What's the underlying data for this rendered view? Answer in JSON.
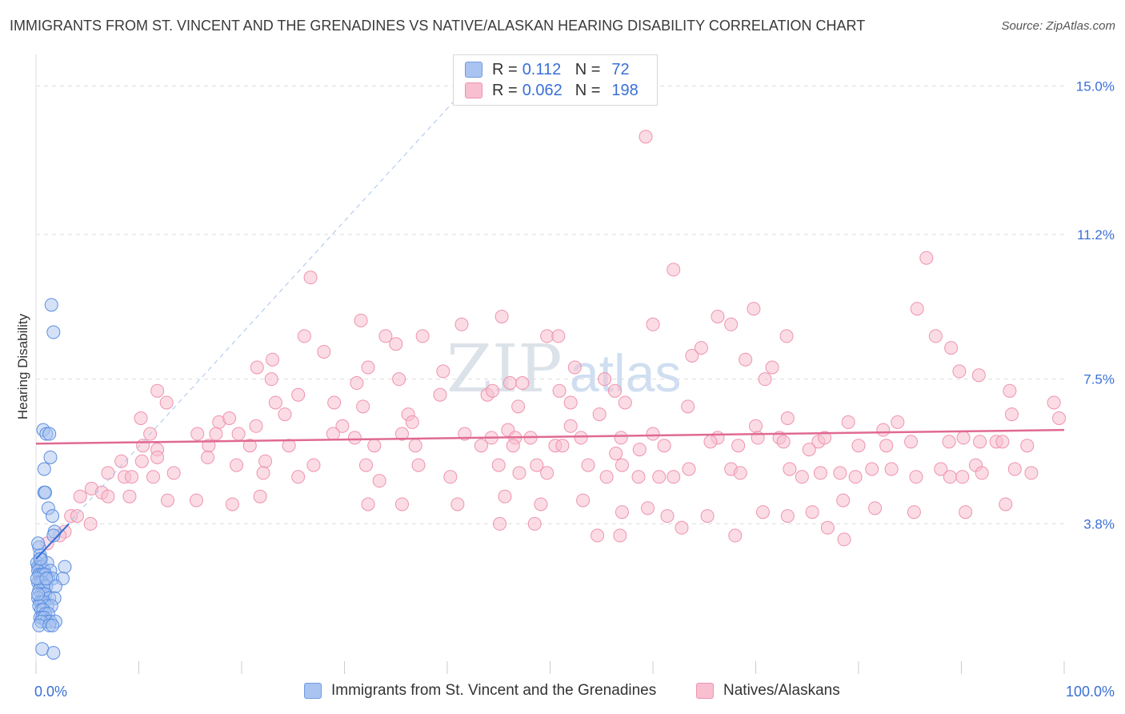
{
  "title": "IMMIGRANTS FROM ST. VINCENT AND THE GRENADINES VS NATIVE/ALASKAN HEARING DISABILITY CORRELATION CHART",
  "source": "Source: ZipAtlas.com",
  "watermark": {
    "zip": "ZIP",
    "atlas": "atlas"
  },
  "legend_top": {
    "rows": [
      {
        "r_label": "R =",
        "r_value": "0.112",
        "n_label": "N =",
        "n_value": "72",
        "color": "#a9c4f0",
        "border": "#6f9be0"
      },
      {
        "r_label": "R =",
        "r_value": "0.062",
        "n_label": "N =",
        "n_value": "198",
        "color": "#f7bfd0",
        "border": "#ee93ae"
      }
    ]
  },
  "legend_bottom": {
    "items": [
      {
        "label": "Immigrants from St. Vincent and the Grenadines",
        "color": "#a9c4f0",
        "border": "#6f9be0"
      },
      {
        "label": "Natives/Alaskans",
        "color": "#f7bfd0",
        "border": "#ee93ae"
      }
    ]
  },
  "chart_data": {
    "type": "scatter",
    "title": "IMMIGRANTS FROM ST. VINCENT AND THE GRENADINES VS NATIVE/ALASKAN HEARING DISABILITY CORRELATION CHART",
    "xlabel": "",
    "ylabel": "Hearing Disability",
    "xlim": [
      0,
      100
    ],
    "ylim": [
      0,
      15.6
    ],
    "x_tick_labels": [
      "0.0%",
      "100.0%"
    ],
    "y_ticks": [
      3.8,
      7.5,
      11.2,
      15.0
    ],
    "y_tick_labels": [
      "3.8%",
      "7.5%",
      "11.2%",
      "15.0%"
    ],
    "grid": true,
    "colors": {
      "blue_fill": "#a9c4f0",
      "blue_stroke": "#5b8ee0",
      "blue_line": "#2f6fd8",
      "pink_fill": "#f7bfd0",
      "pink_stroke": "#ee93ae",
      "pink_line": "#e06a93",
      "grid": "#dcdcdc",
      "tick_label": "#3a6fd6"
    },
    "series": [
      {
        "name": "Immigrants from St. Vincent and the Grenadines",
        "r": 0.112,
        "n": 72,
        "trend": {
          "x0": 0,
          "y0": 2.9,
          "x1": 3.2,
          "y1": 3.8
        },
        "trend_extended": {
          "x0": 0,
          "y0": 2.9,
          "x1": 42,
          "y1": 15.0
        },
        "points": [
          [
            1.5,
            9.4
          ],
          [
            1.7,
            8.7
          ],
          [
            0.7,
            6.2
          ],
          [
            1.0,
            6.1
          ],
          [
            1.3,
            6.1
          ],
          [
            1.4,
            5.5
          ],
          [
            0.8,
            5.2
          ],
          [
            0.8,
            4.6
          ],
          [
            0.9,
            4.6
          ],
          [
            1.2,
            4.2
          ],
          [
            1.6,
            4.0
          ],
          [
            1.8,
            3.6
          ],
          [
            1.7,
            3.5
          ],
          [
            0.3,
            3.2
          ],
          [
            0.4,
            3.0
          ],
          [
            0.5,
            2.9
          ],
          [
            0.1,
            2.8
          ],
          [
            0.2,
            2.7
          ],
          [
            0.4,
            2.7
          ],
          [
            0.6,
            2.7
          ],
          [
            0.8,
            2.6
          ],
          [
            1.1,
            2.8
          ],
          [
            1.4,
            2.6
          ],
          [
            2.8,
            2.7
          ],
          [
            0.2,
            2.6
          ],
          [
            0.3,
            2.5
          ],
          [
            0.5,
            2.5
          ],
          [
            0.7,
            2.5
          ],
          [
            0.9,
            2.5
          ],
          [
            1.2,
            2.4
          ],
          [
            1.6,
            2.4
          ],
          [
            2.6,
            2.4
          ],
          [
            0.2,
            2.3
          ],
          [
            0.4,
            2.3
          ],
          [
            0.6,
            2.3
          ],
          [
            0.8,
            2.2
          ],
          [
            1.0,
            2.2
          ],
          [
            1.9,
            2.2
          ],
          [
            0.3,
            2.1
          ],
          [
            0.5,
            2.0
          ],
          [
            0.7,
            2.0
          ],
          [
            0.9,
            2.0
          ],
          [
            1.3,
            1.9
          ],
          [
            1.8,
            1.9
          ],
          [
            0.2,
            1.9
          ],
          [
            0.4,
            1.8
          ],
          [
            0.6,
            1.8
          ],
          [
            0.8,
            1.8
          ],
          [
            1.1,
            1.7
          ],
          [
            1.5,
            1.7
          ],
          [
            0.3,
            1.7
          ],
          [
            0.5,
            1.6
          ],
          [
            0.7,
            1.6
          ],
          [
            0.9,
            1.5
          ],
          [
            1.2,
            1.5
          ],
          [
            0.4,
            1.4
          ],
          [
            0.6,
            1.4
          ],
          [
            0.8,
            1.4
          ],
          [
            1.0,
            1.3
          ],
          [
            1.4,
            1.3
          ],
          [
            1.9,
            1.3
          ],
          [
            0.5,
            1.3
          ],
          [
            0.3,
            1.2
          ],
          [
            1.3,
            1.2
          ],
          [
            1.6,
            1.2
          ],
          [
            0.6,
            0.6
          ],
          [
            1.7,
            0.5
          ],
          [
            0.2,
            2.0
          ],
          [
            0.1,
            2.4
          ],
          [
            0.2,
            3.3
          ],
          [
            0.4,
            2.9
          ],
          [
            1.0,
            2.4
          ]
        ]
      },
      {
        "name": "Natives/Alaskans",
        "r": 0.062,
        "n": 198,
        "trend": {
          "x0": 0,
          "y0": 5.85,
          "x1": 100,
          "y1": 6.2
        },
        "points": [
          [
            59.3,
            13.7
          ],
          [
            26.7,
            10.1
          ],
          [
            62.0,
            10.3
          ],
          [
            86.6,
            10.6
          ],
          [
            31.6,
            9.0
          ],
          [
            41.4,
            8.9
          ],
          [
            45.3,
            9.1
          ],
          [
            60.0,
            8.9
          ],
          [
            66.3,
            9.1
          ],
          [
            67.6,
            8.9
          ],
          [
            69.8,
            9.3
          ],
          [
            85.7,
            9.3
          ],
          [
            26.1,
            8.6
          ],
          [
            34.0,
            8.6
          ],
          [
            35.0,
            8.4
          ],
          [
            37.6,
            8.6
          ],
          [
            49.7,
            8.6
          ],
          [
            50.8,
            8.6
          ],
          [
            73.0,
            8.6
          ],
          [
            87.5,
            8.6
          ],
          [
            28.0,
            8.2
          ],
          [
            23.0,
            8.0
          ],
          [
            63.8,
            8.1
          ],
          [
            64.7,
            8.3
          ],
          [
            69.0,
            8.0
          ],
          [
            89.0,
            8.3
          ],
          [
            21.5,
            7.8
          ],
          [
            32.3,
            7.8
          ],
          [
            39.6,
            7.7
          ],
          [
            52.4,
            7.8
          ],
          [
            71.6,
            7.8
          ],
          [
            89.8,
            7.7
          ],
          [
            22.9,
            7.5
          ],
          [
            31.2,
            7.4
          ],
          [
            35.3,
            7.5
          ],
          [
            46.1,
            7.4
          ],
          [
            47.3,
            7.4
          ],
          [
            55.3,
            7.5
          ],
          [
            70.9,
            7.5
          ],
          [
            91.7,
            7.6
          ],
          [
            11.8,
            7.2
          ],
          [
            25.5,
            7.1
          ],
          [
            39.3,
            7.1
          ],
          [
            43.9,
            7.1
          ],
          [
            44.4,
            7.2
          ],
          [
            50.9,
            7.2
          ],
          [
            56.3,
            7.2
          ],
          [
            94.7,
            7.2
          ],
          [
            12.7,
            6.9
          ],
          [
            23.3,
            6.9
          ],
          [
            29.0,
            6.9
          ],
          [
            31.8,
            6.8
          ],
          [
            36.2,
            6.6
          ],
          [
            46.9,
            6.8
          ],
          [
            52.0,
            6.9
          ],
          [
            54.8,
            6.6
          ],
          [
            57.3,
            6.9
          ],
          [
            63.4,
            6.8
          ],
          [
            99.0,
            6.9
          ],
          [
            10.2,
            6.5
          ],
          [
            17.8,
            6.4
          ],
          [
            18.8,
            6.5
          ],
          [
            21.4,
            6.3
          ],
          [
            24.2,
            6.6
          ],
          [
            29.8,
            6.3
          ],
          [
            36.6,
            6.4
          ],
          [
            45.9,
            6.2
          ],
          [
            52.0,
            6.3
          ],
          [
            60.0,
            6.1
          ],
          [
            70.0,
            6.3
          ],
          [
            73.1,
            6.5
          ],
          [
            79.0,
            6.4
          ],
          [
            82.4,
            6.2
          ],
          [
            83.8,
            6.4
          ],
          [
            94.9,
            6.6
          ],
          [
            99.5,
            6.5
          ],
          [
            11.1,
            6.1
          ],
          [
            15.7,
            6.1
          ],
          [
            17.5,
            6.1
          ],
          [
            19.7,
            6.1
          ],
          [
            28.9,
            6.1
          ],
          [
            31.0,
            6.0
          ],
          [
            35.6,
            6.1
          ],
          [
            41.7,
            6.1
          ],
          [
            44.3,
            6.0
          ],
          [
            46.6,
            6.0
          ],
          [
            48.1,
            6.0
          ],
          [
            53.0,
            6.0
          ],
          [
            56.9,
            6.0
          ],
          [
            66.3,
            6.0
          ],
          [
            70.2,
            6.0
          ],
          [
            72.3,
            6.0
          ],
          [
            76.1,
            5.9
          ],
          [
            76.7,
            6.0
          ],
          [
            85.1,
            5.9
          ],
          [
            90.2,
            6.0
          ],
          [
            10.4,
            5.8
          ],
          [
            11.8,
            5.7
          ],
          [
            16.8,
            5.8
          ],
          [
            20.8,
            5.8
          ],
          [
            24.6,
            5.8
          ],
          [
            32.9,
            5.8
          ],
          [
            36.9,
            5.8
          ],
          [
            43.3,
            5.8
          ],
          [
            46.4,
            5.8
          ],
          [
            50.5,
            5.8
          ],
          [
            51.2,
            5.8
          ],
          [
            56.4,
            5.6
          ],
          [
            58.7,
            5.7
          ],
          [
            61.1,
            5.8
          ],
          [
            65.6,
            5.9
          ],
          [
            68.3,
            5.8
          ],
          [
            72.7,
            5.9
          ],
          [
            75.2,
            5.7
          ],
          [
            80.0,
            5.8
          ],
          [
            82.7,
            5.8
          ],
          [
            88.8,
            5.9
          ],
          [
            91.8,
            5.9
          ],
          [
            93.4,
            5.9
          ],
          [
            94.0,
            5.9
          ],
          [
            96.4,
            5.8
          ],
          [
            8.3,
            5.4
          ],
          [
            10.3,
            5.4
          ],
          [
            11.8,
            5.5
          ],
          [
            16.7,
            5.5
          ],
          [
            19.5,
            5.3
          ],
          [
            22.3,
            5.4
          ],
          [
            27.0,
            5.3
          ],
          [
            32.1,
            5.3
          ],
          [
            37.2,
            5.3
          ],
          [
            45.0,
            5.3
          ],
          [
            48.7,
            5.3
          ],
          [
            53.7,
            5.3
          ],
          [
            57.0,
            5.3
          ],
          [
            63.5,
            5.2
          ],
          [
            67.6,
            5.2
          ],
          [
            73.3,
            5.2
          ],
          [
            81.3,
            5.2
          ],
          [
            83.2,
            5.2
          ],
          [
            88.0,
            5.2
          ],
          [
            91.4,
            5.3
          ],
          [
            95.2,
            5.2
          ],
          [
            7.0,
            5.1
          ],
          [
            8.6,
            5.0
          ],
          [
            9.3,
            5.0
          ],
          [
            11.4,
            5.0
          ],
          [
            13.4,
            5.1
          ],
          [
            22.1,
            5.1
          ],
          [
            25.5,
            5.0
          ],
          [
            33.4,
            4.9
          ],
          [
            40.3,
            5.0
          ],
          [
            47.0,
            5.1
          ],
          [
            49.7,
            5.1
          ],
          [
            55.5,
            5.0
          ],
          [
            58.6,
            5.0
          ],
          [
            60.6,
            5.0
          ],
          [
            62.0,
            5.0
          ],
          [
            68.5,
            5.1
          ],
          [
            74.5,
            5.0
          ],
          [
            76.3,
            5.1
          ],
          [
            78.2,
            5.1
          ],
          [
            79.7,
            5.0
          ],
          [
            85.6,
            5.0
          ],
          [
            88.9,
            5.0
          ],
          [
            90.1,
            5.0
          ],
          [
            92.0,
            5.1
          ],
          [
            96.8,
            5.1
          ],
          [
            4.3,
            4.5
          ],
          [
            5.4,
            4.7
          ],
          [
            6.4,
            4.6
          ],
          [
            7.0,
            4.5
          ],
          [
            9.1,
            4.5
          ],
          [
            12.8,
            4.4
          ],
          [
            15.6,
            4.4
          ],
          [
            19.1,
            4.3
          ],
          [
            21.8,
            4.5
          ],
          [
            32.3,
            4.3
          ],
          [
            35.6,
            4.3
          ],
          [
            41.0,
            4.3
          ],
          [
            45.6,
            4.5
          ],
          [
            49.1,
            4.3
          ],
          [
            53.2,
            4.4
          ],
          [
            57.0,
            4.1
          ],
          [
            59.5,
            4.2
          ],
          [
            61.4,
            4.0
          ],
          [
            65.3,
            4.0
          ],
          [
            70.7,
            4.1
          ],
          [
            73.1,
            4.0
          ],
          [
            75.5,
            4.1
          ],
          [
            78.5,
            4.4
          ],
          [
            81.6,
            4.2
          ],
          [
            85.4,
            4.1
          ],
          [
            90.4,
            4.1
          ],
          [
            94.3,
            4.3
          ],
          [
            3.4,
            4.0
          ],
          [
            4.0,
            4.0
          ],
          [
            5.3,
            3.8
          ],
          [
            2.8,
            3.6
          ],
          [
            2.3,
            3.5
          ],
          [
            1.1,
            3.3
          ],
          [
            45.1,
            3.8
          ],
          [
            48.5,
            3.8
          ],
          [
            54.6,
            3.5
          ],
          [
            56.8,
            3.5
          ],
          [
            62.8,
            3.7
          ],
          [
            68.0,
            3.5
          ],
          [
            77.0,
            3.7
          ],
          [
            78.6,
            3.4
          ]
        ]
      }
    ]
  }
}
